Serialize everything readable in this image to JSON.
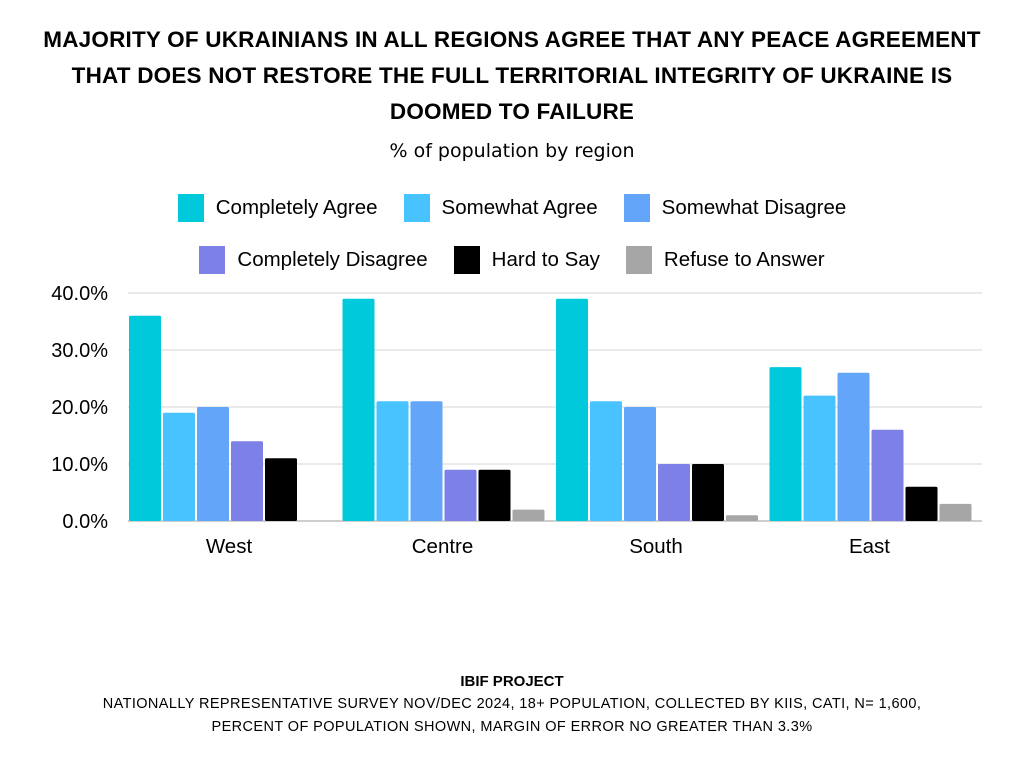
{
  "title": "MAJORITY OF UKRAINIANS IN ALL REGIONS AGREE THAT ANY PEACE AGREEMENT THAT DOES NOT RESTORE THE FULL TERRITORIAL INTEGRITY OF UKRAINE IS DOOMED TO FAILURE",
  "subtitle": "% of population by region",
  "legend": [
    {
      "label": "Completely Agree",
      "color": "#00C9DC"
    },
    {
      "label": "Somewhat Agree",
      "color": "#48C3FF"
    },
    {
      "label": "Somewhat Disagree",
      "color": "#63A5F8"
    },
    {
      "label": "Completely Disagree",
      "color": "#7D80E6"
    },
    {
      "label": "Hard to Say",
      "color": "#000000"
    },
    {
      "label": "Refuse to Answer",
      "color": "#A6A6A6"
    }
  ],
  "footer": {
    "title": "IBIF PROJECT",
    "line1": "NATIONALLY REPRESENTATIVE SURVEY NOV/DEC 2024, 18+ POPULATION, COLLECTED BY KIIS, CATI, N= 1,600,",
    "line2": "PERCENT OF POPULATION SHOWN, MARGIN OF ERROR NO GREATER THAN 3.3%"
  },
  "chart_data": {
    "type": "bar",
    "title": "MAJORITY OF UKRAINIANS IN ALL REGIONS AGREE THAT ANY PEACE AGREEMENT THAT DOES NOT RESTORE THE FULL TERRITORIAL INTEGRITY OF UKRAINE IS DOOMED TO FAILURE",
    "subtitle": "% of population by region",
    "xlabel": "",
    "ylabel": "",
    "categories": [
      "West",
      "Centre",
      "South",
      "East"
    ],
    "ylim": [
      0,
      40
    ],
    "yticks": [
      0,
      10,
      20,
      30,
      40
    ],
    "ytick_labels": [
      "0.0%",
      "10.0%",
      "20.0%",
      "30.0%",
      "40.0%"
    ],
    "grid": true,
    "legend_position": "top",
    "series": [
      {
        "name": "Completely Agree",
        "color": "#00C9DC",
        "values": [
          36,
          39,
          39,
          27
        ]
      },
      {
        "name": "Somewhat Agree",
        "color": "#48C3FF",
        "values": [
          19,
          21,
          21,
          22
        ]
      },
      {
        "name": "Somewhat Disagree",
        "color": "#63A5F8",
        "values": [
          20,
          21,
          20,
          26
        ]
      },
      {
        "name": "Completely Disagree",
        "color": "#7D80E6",
        "values": [
          14,
          9,
          10,
          16
        ]
      },
      {
        "name": "Hard to Say",
        "color": "#000000",
        "values": [
          11,
          9,
          10,
          6
        ]
      },
      {
        "name": "Refuse to Answer",
        "color": "#A6A6A6",
        "values": [
          0,
          2,
          1,
          3
        ]
      }
    ]
  }
}
